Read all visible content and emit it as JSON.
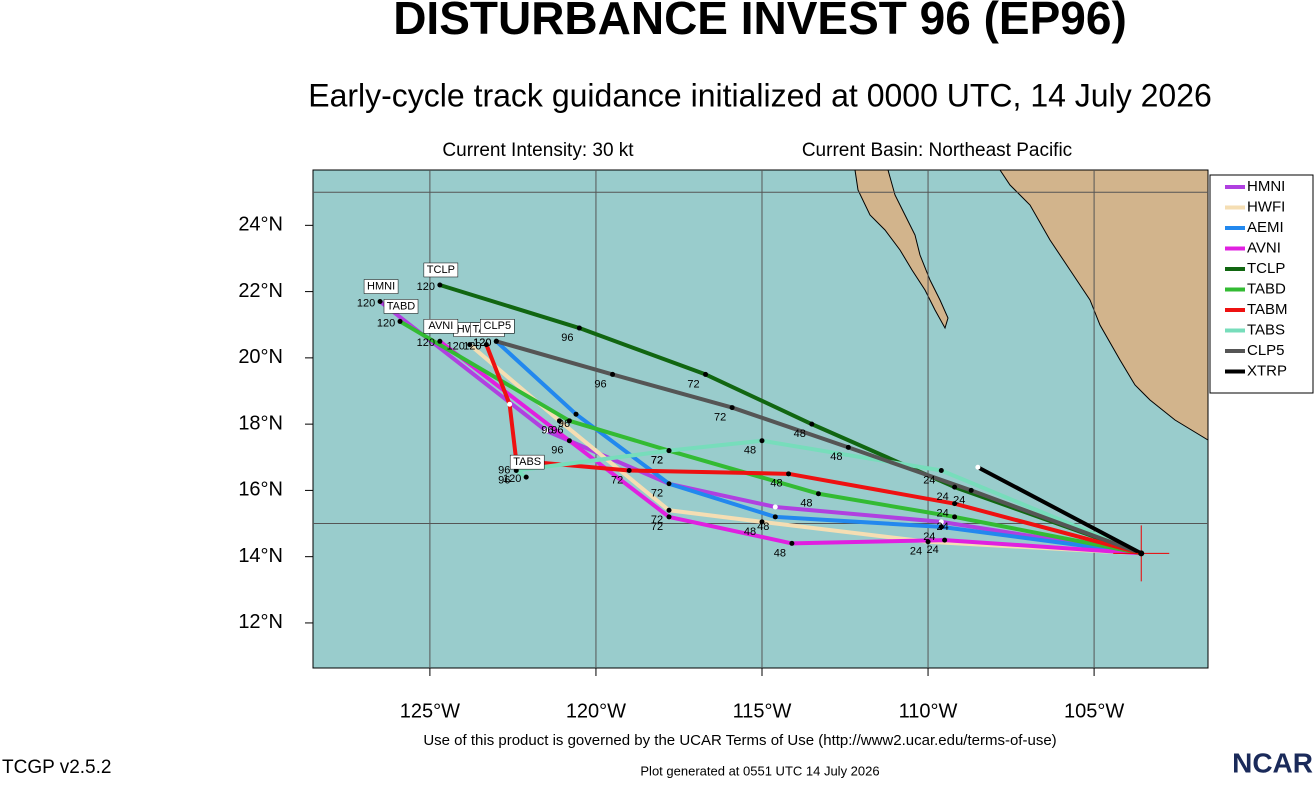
{
  "chart_data": {
    "type": "track_map",
    "title": "DISTURBANCE INVEST 96 (EP96)",
    "subtitle": "Early-cycle track guidance initialized at 0000 UTC, 14 July 2026",
    "intensity": "Current Intensity: 30 kt",
    "basin": "Current Basin: Northeast Pacific",
    "footer": "Use of this product is governed by the UCAR Terms of Use (http://www2.ucar.edu/terms-of-use)",
    "version": "TCGP v2.5.2",
    "generated": "Plot generated at 0551 UTC   14 July 2026",
    "logo": "NCAR",
    "xlim": [
      -128.52,
      -101.57
    ],
    "ylim": [
      10.64,
      25.67
    ],
    "xticks": [
      {
        "value": -125,
        "label": "125°W"
      },
      {
        "value": -120,
        "label": "120°W"
      },
      {
        "value": -115,
        "label": "115°W"
      },
      {
        "value": -110,
        "label": "110°W"
      },
      {
        "value": -105,
        "label": "105°W"
      }
    ],
    "yticks": [
      {
        "value": 12,
        "label": "12°N"
      },
      {
        "value": 14,
        "label": "14°N"
      },
      {
        "value": 16,
        "label": "16°N"
      },
      {
        "value": 18,
        "label": "18°N"
      },
      {
        "value": 20,
        "label": "20°N"
      },
      {
        "value": 22,
        "label": "22°N"
      },
      {
        "value": 24,
        "label": "24°N"
      }
    ],
    "lat_grid": [
      15,
      25
    ],
    "series": [
      {
        "name": "HMNI",
        "color": "#b040e0",
        "lon": [
          -103.58,
          -109.6,
          -114.6,
          -117.8,
          -121.5,
          -126.5
        ],
        "lat": [
          14.1,
          15.05,
          15.5,
          16.2,
          17.8,
          21.7
        ],
        "tau": [
          null,
          null,
          null,
          null,
          null,
          120
        ]
      },
      {
        "name": "HWFI",
        "color": "#f5deb3",
        "lon": [
          -103.58,
          -110.0,
          -115.0,
          -117.8,
          -121.1,
          -123.8
        ],
        "lat": [
          14.1,
          14.45,
          15.05,
          15.4,
          18.1,
          20.4
        ],
        "tau": [
          null,
          24,
          48,
          72,
          96,
          120
        ]
      },
      {
        "name": "AEMI",
        "color": "#2288ee",
        "lon": [
          -103.58,
          -109.6,
          -114.6,
          -117.8,
          -120.6,
          -123.0
        ],
        "lat": [
          14.1,
          14.9,
          15.2,
          16.2,
          18.3,
          20.5
        ],
        "tau": [
          null,
          24,
          48,
          72,
          96,
          120
        ]
      },
      {
        "name": "AVNI",
        "color": "#e020e0",
        "lon": [
          -103.58,
          -109.5,
          -114.1,
          -117.8,
          -120.8,
          -124.7
        ],
        "lat": [
          14.1,
          14.5,
          14.4,
          15.2,
          17.5,
          20.5
        ],
        "tau": [
          null,
          24,
          48,
          72,
          96,
          120
        ]
      },
      {
        "name": "TCLP",
        "color": "#116611",
        "lon": [
          -103.58,
          -109.2,
          -113.5,
          -116.7,
          -120.5,
          -124.7
        ],
        "lat": [
          14.1,
          16.1,
          18.0,
          19.5,
          20.9,
          22.2
        ],
        "tau": [
          null,
          24,
          48,
          72,
          96,
          120
        ]
      },
      {
        "name": "TABD",
        "color": "#33bb33",
        "lon": [
          -103.58,
          -109.2,
          -113.3,
          -117.8,
          -120.8,
          -125.9
        ],
        "lat": [
          14.1,
          15.2,
          15.9,
          17.2,
          18.1,
          21.1
        ],
        "tau": [
          null,
          24,
          48,
          72,
          96,
          120
        ]
      },
      {
        "name": "TABM",
        "color": "#ee1111",
        "lon": [
          -103.58,
          -109.2,
          -114.2,
          -119.0,
          -122.4,
          -122.6,
          -123.3
        ],
        "lat": [
          14.1,
          15.6,
          16.5,
          16.6,
          16.9,
          18.6,
          20.4
        ],
        "tau": [
          null,
          24,
          48,
          72,
          96,
          null,
          120
        ]
      },
      {
        "name": "TABS",
        "color": "#77ddbb",
        "lon": [
          -103.58,
          -109.6,
          -115.0,
          -117.8,
          -122.4,
          -122.1
        ],
        "lat": [
          14.1,
          16.6,
          17.5,
          17.2,
          16.6,
          16.4
        ],
        "tau": [
          null,
          24,
          48,
          72,
          96,
          120
        ]
      },
      {
        "name": "CLP5",
        "color": "#555555",
        "lon": [
          -103.58,
          -108.7,
          -112.4,
          -115.9,
          -119.5,
          -123.0
        ],
        "lat": [
          14.1,
          16.0,
          17.3,
          18.5,
          19.5,
          20.5
        ],
        "tau": [
          null,
          24,
          48,
          72,
          96,
          120
        ]
      },
      {
        "name": "XTRP",
        "color": "#000000",
        "lon": [
          -103.58,
          -108.5
        ],
        "lat": [
          14.1,
          16.7
        ],
        "tau": [
          null,
          null
        ]
      }
    ]
  }
}
